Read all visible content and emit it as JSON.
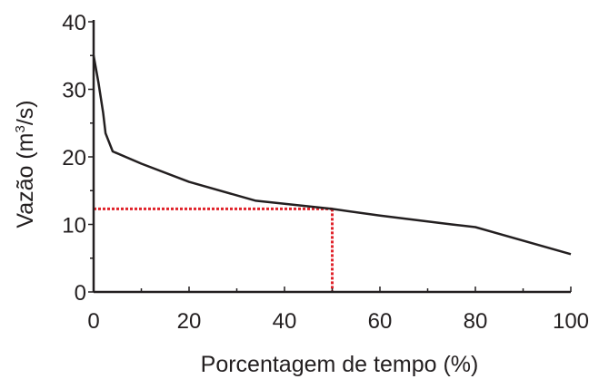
{
  "chart_data": {
    "type": "line",
    "title": "",
    "xlabel": "Porcentagem de tempo (%)",
    "ylabel_main": "Vazão (m",
    "ylabel_sup": "3",
    "ylabel_tail": "/s)",
    "xlim": [
      0,
      100
    ],
    "ylim": [
      0,
      40
    ],
    "xticks": [
      "0",
      "20",
      "40",
      "60",
      "80",
      "100"
    ],
    "yticks": [
      "0",
      "10",
      "20",
      "30",
      "40"
    ],
    "grid": false,
    "series": [
      {
        "color": "#231f20",
        "x": [
          0,
          1,
          2,
          2.5,
          4,
          10,
          20,
          34,
          50,
          60,
          75,
          80,
          100
        ],
        "y": [
          35,
          31,
          26.5,
          23.5,
          20.8,
          19,
          16.3,
          13.5,
          12.3,
          11.3,
          10,
          9.6,
          5.6
        ]
      }
    ],
    "reference": {
      "color": "#e0222a",
      "x": 50,
      "y": 12.3
    }
  }
}
